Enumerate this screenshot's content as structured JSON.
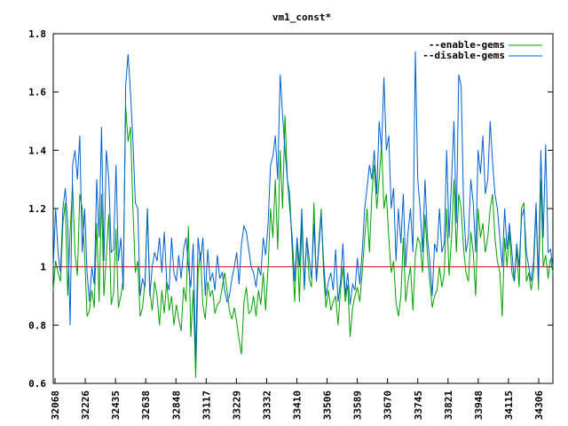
{
  "chart_data": {
    "type": "line",
    "title": "vm1_const*",
    "xlabel": "",
    "ylabel": "",
    "ylim": [
      0.6,
      1.8
    ],
    "yticks": [
      "0.6",
      "0.8",
      "1",
      "1.2",
      "1.4",
      "1.6",
      "1.8"
    ],
    "xtick_labels": [
      "32068",
      "32226",
      "32435",
      "32638",
      "32848",
      "33117",
      "33229",
      "33332",
      "33410",
      "33506",
      "33589",
      "33670",
      "33745",
      "33821",
      "33948",
      "34115",
      "34306"
    ],
    "grid": false,
    "legend_position": "top-right",
    "reference_line": 1.0,
    "series": [
      {
        "name": "--enable-gems",
        "color": "#00a000",
        "values": [
          0.92,
          1.02,
          0.98,
          0.95,
          1.15,
          1.22,
          0.9,
          1.12,
          1.28,
          1.05,
          0.97,
          1.25,
          1.2,
          1.04,
          0.83,
          0.85,
          0.92,
          0.86,
          1.15,
          0.88,
          1.25,
          0.9,
          1.04,
          1.18,
          0.87,
          0.91,
          1.13,
          0.86,
          0.9,
          0.96,
          1.55,
          1.43,
          1.48,
          1.2,
          0.98,
          1.02,
          0.83,
          0.86,
          0.95,
          1.2,
          0.92,
          0.85,
          0.95,
          0.9,
          0.8,
          0.92,
          0.84,
          0.95,
          0.85,
          0.9,
          0.8,
          0.87,
          0.82,
          0.78,
          0.93,
          0.88,
          1.14,
          0.76,
          0.92,
          0.62,
          0.98,
          1.05,
          0.87,
          0.82,
          0.95,
          0.9,
          0.92,
          0.84,
          0.87,
          0.88,
          0.93,
          0.98,
          0.92,
          0.85,
          0.82,
          0.86,
          0.81,
          0.75,
          0.7,
          0.88,
          0.93,
          0.84,
          0.85,
          0.9,
          0.83,
          0.92,
          0.87,
          0.98,
          0.85,
          1.0,
          1.2,
          1.1,
          1.3,
          1.06,
          1.4,
          1.2,
          1.52,
          1.3,
          1.25,
          1.05,
          0.88,
          1.1,
          0.88,
          1.15,
          0.92,
          1.1,
          0.96,
          0.93,
          1.22,
          0.95,
          1.08,
          1.2,
          0.98,
          0.86,
          0.92,
          0.85,
          0.88,
          0.9,
          0.8,
          0.92,
          1.0,
          0.88,
          0.94,
          0.76,
          0.86,
          0.9,
          0.93,
          0.88,
          0.98,
          1.1,
          1.2,
          1.05,
          1.25,
          1.35,
          1.2,
          1.3,
          1.42,
          1.2,
          1.25,
          1.1,
          0.98,
          1.02,
          0.88,
          0.83,
          0.9,
          1.1,
          0.88,
          0.95,
          1.0,
          0.85,
          1.04,
          1.1,
          1.08,
          0.98,
          1.18,
          1.04,
          0.95,
          0.86,
          0.9,
          0.92,
          1.0,
          0.93,
          0.98,
          1.2,
          0.97,
          1.1,
          1.3,
          1.05,
          1.25,
          1.2,
          1.06,
          0.98,
          0.95,
          1.12,
          1.05,
          0.9,
          1.2,
          1.1,
          1.15,
          1.05,
          1.1,
          1.2,
          1.25,
          1.1,
          1.02,
          0.98,
          0.83,
          1.1,
          1.0,
          1.12,
          0.98,
          0.95,
          1.06,
          0.93,
          1.2,
          1.22,
          0.95,
          0.98,
          0.92,
          0.98,
          1.2,
          0.92,
          1.3,
          1.0,
          1.04,
          0.96,
          1.03,
          0.98
        ]
      },
      {
        "name": "--disable-gems",
        "color": "#0060d0",
        "values": [
          1.0,
          1.2,
          1.05,
          0.98,
          1.2,
          1.27,
          1.15,
          0.8,
          1.35,
          1.4,
          1.3,
          1.45,
          1.05,
          1.2,
          0.98,
          0.88,
          1.0,
          0.94,
          1.3,
          1.1,
          1.48,
          1.02,
          1.4,
          1.3,
          1.05,
          1.06,
          1.35,
          1.02,
          1.1,
          0.92,
          1.62,
          1.73,
          1.6,
          1.43,
          1.22,
          1.2,
          0.9,
          0.96,
          0.93,
          1.2,
          0.9,
          1.0,
          1.05,
          1.02,
          1.1,
          0.98,
          1.12,
          0.95,
          0.92,
          1.1,
          0.98,
          0.95,
          1.04,
          0.96,
          1.06,
          1.1,
          1.0,
          0.93,
          1.08,
          0.68,
          1.1,
          1.02,
          1.1,
          0.9,
          1.06,
          0.95,
          0.98,
          0.92,
          1.04,
          0.96,
          0.98,
          0.92,
          0.88,
          0.9,
          0.96,
          1.0,
          1.05,
          0.94,
          1.08,
          1.14,
          1.12,
          1.06,
          1.0,
          0.98,
          0.93,
          1.0,
          0.97,
          1.1,
          1.04,
          1.15,
          1.35,
          1.38,
          1.45,
          1.3,
          1.66,
          1.52,
          1.4,
          1.3,
          1.2,
          1.1,
          0.95,
          1.1,
          1.0,
          1.2,
          0.93,
          1.1,
          1.03,
          0.96,
          1.15,
          0.95,
          1.06,
          1.18,
          1.02,
          0.9,
          0.95,
          0.98,
          0.92,
          1.06,
          0.88,
          0.95,
          1.08,
          0.9,
          0.98,
          0.87,
          0.94,
          0.92,
          1.03,
          0.94,
          1.05,
          1.2,
          1.27,
          1.35,
          1.3,
          1.4,
          1.25,
          1.5,
          1.4,
          1.65,
          1.4,
          1.45,
          1.2,
          1.27,
          1.02,
          1.2,
          1.08,
          1.25,
          1.0,
          1.12,
          1.2,
          1.05,
          1.74,
          1.3,
          1.2,
          1.05,
          1.3,
          1.1,
          1.02,
          0.9,
          1.08,
          1.05,
          1.2,
          1.05,
          1.08,
          1.4,
          1.1,
          1.3,
          1.5,
          1.15,
          1.66,
          1.62,
          1.2,
          1.05,
          1.1,
          1.3,
          1.22,
          1.05,
          1.4,
          1.32,
          1.45,
          1.25,
          1.3,
          1.5,
          1.36,
          1.25,
          1.2,
          1.1,
          1.0,
          1.2,
          1.06,
          1.15,
          1.05,
          0.95,
          1.08,
          1.0,
          1.17,
          1.2,
          1.05,
          1.0,
          0.95,
          1.02,
          1.22,
          0.95,
          1.4,
          1.1,
          1.42,
          1.05,
          1.06,
          1.0
        ]
      }
    ]
  }
}
